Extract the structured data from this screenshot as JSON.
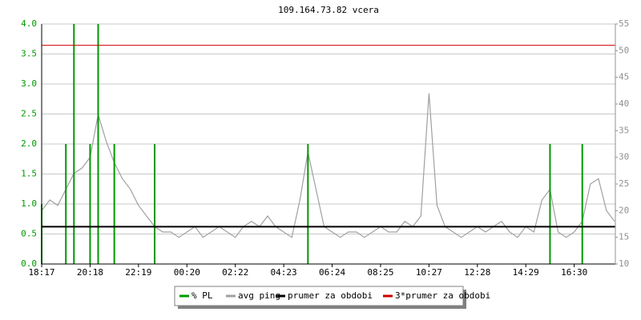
{
  "chart_data": {
    "type": "line",
    "title": "109.164.73.82 vcera",
    "categories": [
      "18:17",
      null,
      null,
      null,
      null,
      null,
      "20:18",
      null,
      null,
      null,
      null,
      null,
      "22:19",
      null,
      null,
      null,
      null,
      null,
      "00:20",
      null,
      null,
      null,
      null,
      null,
      "02:22",
      null,
      null,
      null,
      null,
      null,
      "04:23",
      null,
      null,
      null,
      null,
      null,
      "06:24",
      null,
      null,
      null,
      null,
      null,
      "08:25",
      null,
      null,
      null,
      null,
      null,
      "10:27",
      null,
      null,
      null,
      null,
      null,
      "12:28",
      null,
      null,
      null,
      null,
      null,
      "14:29",
      null,
      null,
      null,
      null,
      null,
      "16:30",
      null,
      null,
      null,
      null,
      null
    ],
    "series": [
      {
        "name": "% PL",
        "color": "#009900",
        "kind": "impulse",
        "axis": "y",
        "values": [
          1,
          0,
          0,
          2,
          4,
          0,
          2,
          4,
          0,
          2,
          0,
          0,
          0,
          0,
          2,
          0,
          0,
          0,
          0,
          0,
          0,
          0,
          0,
          0,
          0,
          0,
          0,
          0,
          0,
          0,
          0,
          0,
          0,
          2,
          0,
          0,
          0,
          0,
          0,
          0,
          0,
          0,
          0,
          0,
          0,
          0,
          0,
          0,
          0,
          0,
          0,
          0,
          0,
          0,
          0,
          0,
          0,
          0,
          0,
          0,
          0,
          0,
          0,
          2,
          0,
          0,
          0,
          2,
          0,
          0,
          0,
          0
        ]
      },
      {
        "name": "avg ping",
        "color": "#a0a0a0",
        "kind": "line",
        "axis": "y2",
        "values": [
          20,
          22,
          21,
          24,
          27,
          28,
          30,
          38,
          33,
          29,
          26,
          24,
          21,
          19,
          17,
          16,
          16,
          15,
          16,
          17,
          15,
          16,
          17,
          16,
          15,
          17,
          18,
          17,
          19,
          17,
          16,
          15,
          22,
          31,
          24,
          17,
          16,
          15,
          16,
          16,
          15,
          16,
          17,
          16,
          16,
          18,
          17,
          19,
          42,
          21,
          17,
          16,
          15,
          16,
          17,
          16,
          17,
          18,
          16,
          15,
          17,
          16,
          22,
          24,
          16,
          15,
          16,
          18,
          25,
          26,
          20,
          18
        ]
      }
    ],
    "reference_lines": [
      {
        "name": "prumer za obdobi",
        "color": "#000000",
        "value": 17,
        "axis": "y2"
      },
      {
        "name": "3*prumer za obdobi",
        "color": "#cc0000",
        "value": 51,
        "axis": "y2"
      }
    ],
    "ylim": [
      0,
      4
    ],
    "yticks": [
      {
        "value": 0,
        "label": "0.0"
      },
      {
        "value": 0.5,
        "label": "0.5"
      },
      {
        "value": 1,
        "label": "1.0"
      },
      {
        "value": 1.5,
        "label": "1.5"
      },
      {
        "value": 2,
        "label": "2.0"
      },
      {
        "value": 2.5,
        "label": "2.5"
      },
      {
        "value": 3,
        "label": "3.0"
      },
      {
        "value": 3.5,
        "label": "3.5"
      },
      {
        "value": 4,
        "label": "4.0"
      }
    ],
    "y2lim": [
      10,
      55
    ],
    "y2ticks": [
      10,
      15,
      20,
      25,
      30,
      35,
      40,
      45,
      50,
      55
    ],
    "grid": true,
    "legend": "bottom"
  }
}
